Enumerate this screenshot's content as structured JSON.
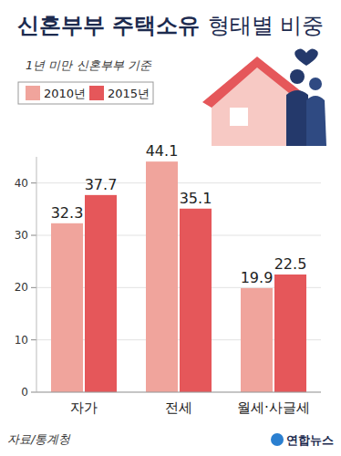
{
  "chart_data": {
    "type": "bar",
    "title": "신혼부부 주택소유 형태별 비중",
    "subtitle": "1년 미만 신혼부부 기준",
    "categories": [
      "자가",
      "전세",
      "월세·사글세"
    ],
    "series": [
      {
        "name": "2010년",
        "color": "#f0a49c",
        "values": [
          32.3,
          44.1,
          19.9
        ]
      },
      {
        "name": "2015년",
        "color": "#e5575a",
        "values": [
          37.7,
          35.1,
          22.5
        ]
      }
    ],
    "ylim": [
      0,
      45
    ],
    "yticks": [
      0,
      10,
      20,
      30,
      40
    ],
    "grid": true,
    "legend": "upper left",
    "data_labels": true,
    "source": "자료/통계청",
    "credit": "연합뉴스"
  }
}
